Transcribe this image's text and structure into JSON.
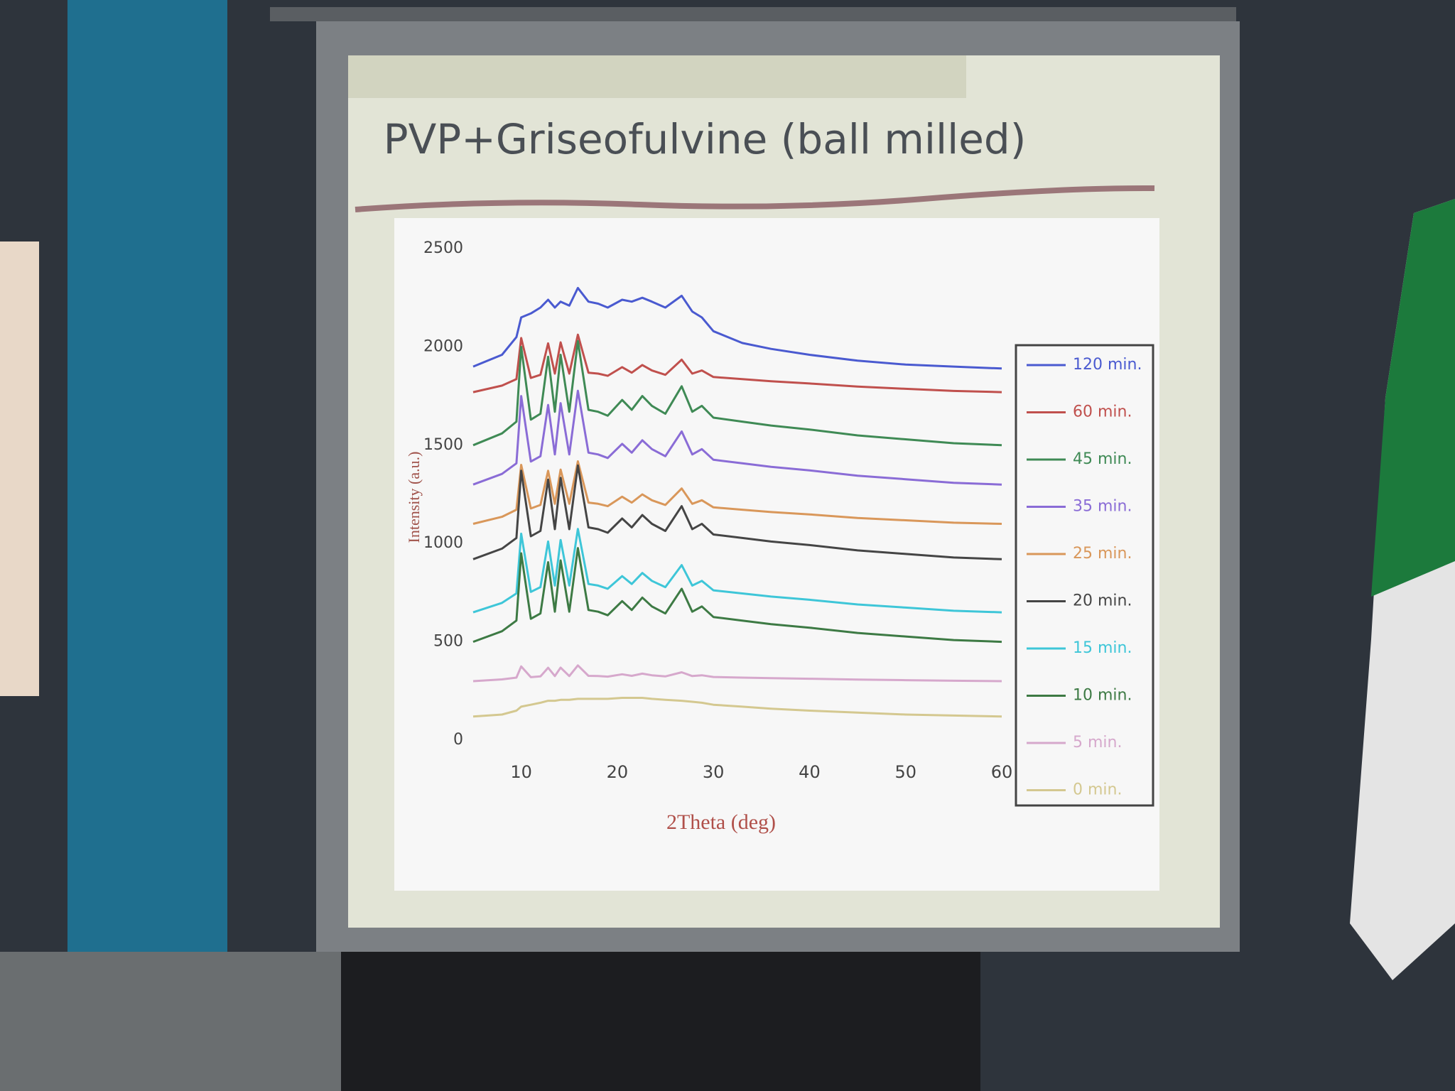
{
  "chart_data": {
    "type": "line",
    "title": "PVP+Griseofulvine (ball milled)",
    "x_label": "2Theta (deg)",
    "y_label": "Intensity (a.u.)",
    "xlim": [
      5,
      60
    ],
    "xticks": [
      10,
      20,
      30,
      40,
      50,
      60
    ],
    "ylim": [
      0,
      2500
    ],
    "yticks": [
      0,
      500,
      1000,
      1500,
      2000,
      2500
    ],
    "x": [
      5,
      8,
      9.5,
      10,
      11,
      12,
      12.8,
      13.5,
      14.1,
      15,
      15.9,
      17,
      18,
      19,
      20.5,
      21.5,
      22.6,
      23.6,
      25,
      26.7,
      27.8,
      28.8,
      30,
      33,
      36,
      40,
      45,
      50,
      55,
      60
    ],
    "series": [
      {
        "name": "120 min.",
        "color": "#4a5ad0",
        "values": [
          1900,
          1960,
          2050,
          2150,
          2170,
          2200,
          2240,
          2200,
          2230,
          2210,
          2300,
          2230,
          2220,
          2200,
          2240,
          2230,
          2250,
          2230,
          2200,
          2260,
          2180,
          2150,
          2080,
          2020,
          1990,
          1960,
          1930,
          1910,
          1900,
          1890
        ]
      },
      {
        "name": "60 min.",
        "color": "#c0504d",
        "values": [
          1770,
          1803,
          1836,
          2045,
          1842,
          1858,
          2018,
          1864,
          2023,
          1864,
          2062,
          1869,
          1864,
          1853,
          1897,
          1869,
          1908,
          1880,
          1858,
          1935,
          1864,
          1880,
          1847,
          1836,
          1825,
          1814,
          1798,
          1787,
          1776,
          1770
        ]
      },
      {
        "name": "45 min.",
        "color": "#3f8a55",
        "values": [
          1500,
          1560,
          1620,
          2000,
          1630,
          1660,
          1950,
          1670,
          1960,
          1670,
          2030,
          1680,
          1670,
          1650,
          1730,
          1680,
          1750,
          1700,
          1660,
          1800,
          1670,
          1700,
          1640,
          1620,
          1600,
          1580,
          1550,
          1530,
          1510,
          1500
        ]
      },
      {
        "name": "35 min.",
        "color": "#8a6cd6",
        "values": [
          1300,
          1354,
          1408,
          1750,
          1417,
          1444,
          1705,
          1453,
          1714,
          1453,
          1777,
          1462,
          1453,
          1435,
          1507,
          1462,
          1525,
          1480,
          1444,
          1570,
          1453,
          1480,
          1426,
          1408,
          1390,
          1372,
          1345,
          1327,
          1309,
          1300
        ]
      },
      {
        "name": "25 min.",
        "color": "#d9975a",
        "values": [
          1100,
          1136,
          1172,
          1400,
          1178,
          1196,
          1370,
          1202,
          1376,
          1202,
          1418,
          1208,
          1202,
          1190,
          1238,
          1208,
          1250,
          1220,
          1196,
          1280,
          1202,
          1220,
          1184,
          1172,
          1160,
          1148,
          1130,
          1118,
          1106,
          1100
        ]
      },
      {
        "name": "20 min.",
        "color": "#454545",
        "values": [
          920,
          974,
          1028,
          1370,
          1037,
          1064,
          1325,
          1073,
          1334,
          1073,
          1397,
          1082,
          1073,
          1055,
          1127,
          1082,
          1145,
          1100,
          1064,
          1190,
          1073,
          1100,
          1046,
          1028,
          1010,
          992,
          965,
          947,
          929,
          920
        ]
      },
      {
        "name": "15 min.",
        "color": "#3ec6d8",
        "values": [
          650,
          698,
          746,
          1050,
          754,
          778,
          1010,
          786,
          1018,
          786,
          1074,
          794,
          786,
          770,
          834,
          794,
          850,
          810,
          778,
          890,
          786,
          810,
          762,
          746,
          730,
          714,
          690,
          674,
          658,
          650
        ]
      },
      {
        "name": "10 min.",
        "color": "#3d7a44",
        "values": [
          500,
          554,
          608,
          950,
          617,
          644,
          905,
          653,
          914,
          653,
          977,
          662,
          653,
          635,
          707,
          662,
          725,
          680,
          644,
          770,
          653,
          680,
          626,
          608,
          590,
          572,
          545,
          527,
          509,
          500
        ]
      },
      {
        "name": "5 min.",
        "color": "#d6a8cc",
        "values": [
          300,
          309,
          318,
          375,
          320,
          324,
          368,
          326,
          369,
          326,
          380,
          327,
          326,
          323,
          335,
          327,
          338,
          330,
          324,
          345,
          326,
          330,
          321,
          318,
          315,
          312,
          308,
          305,
          302,
          300
        ]
      },
      {
        "name": "0 min.",
        "color": "#d4c890",
        "values": [
          120,
          130,
          150,
          170,
          180,
          190,
          200,
          200,
          205,
          205,
          210,
          210,
          210,
          210,
          215,
          215,
          215,
          210,
          205,
          200,
          195,
          190,
          180,
          170,
          160,
          150,
          140,
          130,
          125,
          120
        ]
      }
    ]
  }
}
